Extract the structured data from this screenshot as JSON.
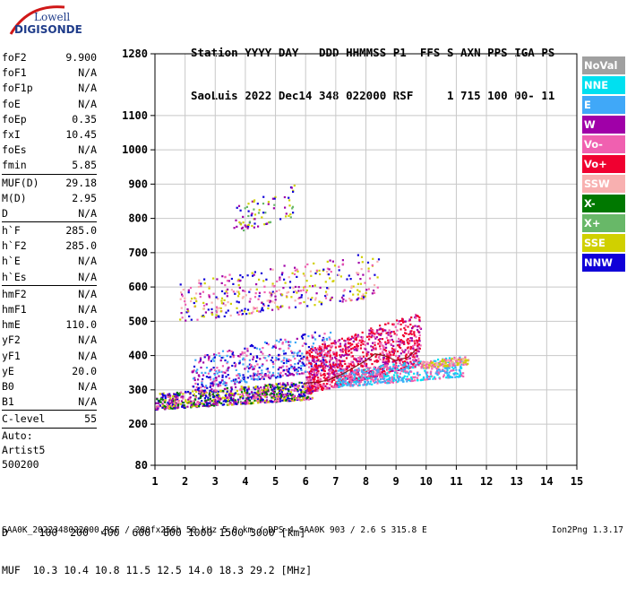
{
  "logo": {
    "line1": "Lowell",
    "line2": "DIGISONDE"
  },
  "header": {
    "line1": "Station YYYY DAY   DDD HHMMSS P1  FFS S AXN PPS IGA PS",
    "line2": "SaoLuis 2022 Dec14 348 022000 RSF     1 715 100 00- 11"
  },
  "params": {
    "group1": [
      {
        "label": "foF2",
        "value": "9.900"
      },
      {
        "label": "foF1",
        "value": "N/A"
      },
      {
        "label": "foF1p",
        "value": "N/A"
      },
      {
        "label": "foE",
        "value": "N/A"
      },
      {
        "label": "foEp",
        "value": "0.35"
      },
      {
        "label": "fxI",
        "value": "10.45"
      },
      {
        "label": "foEs",
        "value": "N/A"
      },
      {
        "label": "fmin",
        "value": "5.85"
      }
    ],
    "group2": [
      {
        "label": "MUF(D)",
        "value": "29.18"
      },
      {
        "label": "M(D)",
        "value": "2.95"
      },
      {
        "label": "D",
        "value": "N/A"
      }
    ],
    "group3": [
      {
        "label": "h`F",
        "value": "285.0"
      },
      {
        "label": "h`F2",
        "value": "285.0"
      },
      {
        "label": "h`E",
        "value": "N/A"
      },
      {
        "label": "h`Es",
        "value": "N/A"
      }
    ],
    "group4": [
      {
        "label": "hmF2",
        "value": "N/A"
      },
      {
        "label": "hmF1",
        "value": "N/A"
      },
      {
        "label": "hmE",
        "value": "110.0"
      },
      {
        "label": "yF2",
        "value": "N/A"
      },
      {
        "label": "yF1",
        "value": "N/A"
      },
      {
        "label": "yE",
        "value": "20.0"
      },
      {
        "label": "B0",
        "value": "N/A"
      },
      {
        "label": "B1",
        "value": "N/A"
      }
    ],
    "group5": [
      {
        "label": "C-level",
        "value": "55"
      }
    ]
  },
  "auto": {
    "line1": "Auto:",
    "line2": "Artist5",
    "line3": "500200"
  },
  "legend": [
    {
      "label": "NoVal",
      "color": "#a0a0a0"
    },
    {
      "label": "NNE",
      "color": "#00e0f0"
    },
    {
      "label": "E",
      "color": "#40a8f8"
    },
    {
      "label": "W",
      "color": "#a000a8"
    },
    {
      "label": "Vo-",
      "color": "#f060b0"
    },
    {
      "label": "Vo+",
      "color": "#f00030"
    },
    {
      "label": "SSW",
      "color": "#f8b0b0"
    },
    {
      "label": "X-",
      "color": "#007800"
    },
    {
      "label": "X+",
      "color": "#68b868"
    },
    {
      "label": "SSE",
      "color": "#d0d000"
    },
    {
      "label": "NNW",
      "color": "#1000d8"
    }
  ],
  "muf_table": {
    "line1": "D     100  200  400  600  800 1000 1500 3000 [km]",
    "line2": "MUF  10.3 10.4 10.8 11.5 12.5 14.0 18.3 29.2 [MHz]"
  },
  "footer": {
    "text": "SAA0K_2022348022000.RSF / 280fx256h 50 kHz 5.0 km / DPS-4 SAA0K 903 / 2.6 S 315.8 E",
    "version": "Ion2Png 1.3.17"
  },
  "chart_data": {
    "type": "scatter",
    "x_ticks": [
      "1",
      "2",
      "3",
      "4",
      "5",
      "6",
      "7",
      "8",
      "9",
      "10",
      "11",
      "12",
      "13",
      "14",
      "15"
    ],
    "y_ticks": [
      "80",
      "200",
      "300",
      "400",
      "500",
      "600",
      "700",
      "800",
      "900",
      "1000",
      "1100",
      "1280"
    ],
    "xlim": [
      1,
      15
    ],
    "ylim": [
      80,
      1280
    ],
    "grid": true,
    "legend_position": "right",
    "trace": {
      "x": [
        6.0,
        6.4,
        6.8,
        7.2,
        7.6,
        8.0,
        8.3,
        8.6,
        9.0,
        9.4,
        9.7
      ],
      "y": [
        320,
        322,
        330,
        345,
        365,
        385,
        405,
        400,
        385,
        395,
        420
      ]
    },
    "clusters": [
      {
        "name": "o-trace",
        "x": [
          1.0,
          6.2
        ],
        "y": [
          245,
          330
        ],
        "colors": [
          "#1000d8",
          "#a000a8",
          "#f060b0",
          "#d0d000",
          "#007800"
        ],
        "n": 900
      },
      {
        "name": "o-trace upper",
        "x": [
          2.2,
          6.8
        ],
        "y": [
          300,
          480
        ],
        "colors": [
          "#1000d8",
          "#a000a8",
          "#f060b0",
          "#40a8f8"
        ],
        "n": 500
      },
      {
        "name": "spread-F",
        "x": [
          6.0,
          9.8
        ],
        "y": [
          290,
          530
        ],
        "colors": [
          "#f00030",
          "#f060b0",
          "#f00030",
          "#a000a8"
        ],
        "n": 1100
      },
      {
        "name": "x-trace",
        "x": [
          7.0,
          11.2
        ],
        "y": [
          310,
          400
        ],
        "colors": [
          "#40a8f8",
          "#00e0f0",
          "#f060b0"
        ],
        "n": 500
      },
      {
        "name": "x-tail",
        "x": [
          9.8,
          11.4
        ],
        "y": [
          365,
          400
        ],
        "colors": [
          "#f060b0",
          "#f8b0b0",
          "#d0d000"
        ],
        "n": 150
      },
      {
        "name": "multi-hop",
        "x": [
          1.8,
          8.4
        ],
        "y": [
          500,
          710
        ],
        "colors": [
          "#f8b0b0",
          "#d0d000",
          "#a000a8",
          "#f060b0",
          "#1000d8"
        ],
        "n": 400
      },
      {
        "name": "third-hop",
        "x": [
          3.6,
          5.6
        ],
        "y": [
          760,
          900
        ],
        "colors": [
          "#1000d8",
          "#a000a8",
          "#68b868",
          "#d0d000"
        ],
        "n": 80
      }
    ]
  }
}
